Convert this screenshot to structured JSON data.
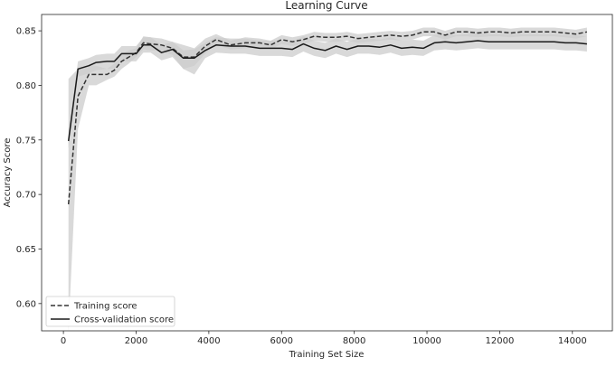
{
  "chart_data": {
    "type": "line",
    "title": "Learning Curve",
    "xlabel": "Training Set Size",
    "ylabel": "Accuracy Score",
    "xlim": [
      -600,
      15100
    ],
    "ylim": [
      0.575,
      0.865
    ],
    "xticks": [
      0,
      2000,
      4000,
      6000,
      8000,
      10000,
      12000,
      14000
    ],
    "xtick_labels": [
      "0",
      "2000",
      "4000",
      "6000",
      "8000",
      "10000",
      "12000",
      "14000"
    ],
    "yticks": [
      0.6,
      0.65,
      0.7,
      0.75,
      0.8,
      0.85
    ],
    "ytick_labels": [
      "0.60",
      "0.65",
      "0.70",
      "0.75",
      "0.80",
      "0.85"
    ],
    "grid": false,
    "legend_position": "bottom-left",
    "x": [
      140,
      400,
      700,
      900,
      1200,
      1400,
      1600,
      1800,
      2000,
      2200,
      2400,
      2700,
      3000,
      3300,
      3600,
      3900,
      4200,
      4600,
      5000,
      5400,
      5700,
      6000,
      6300,
      6600,
      6900,
      7200,
      7500,
      7800,
      8100,
      8400,
      8700,
      9000,
      9300,
      9600,
      9900,
      10200,
      10500,
      10800,
      11100,
      11400,
      11700,
      12000,
      12300,
      12600,
      12900,
      13200,
      13500,
      13800,
      14100,
      14400
    ],
    "series": [
      {
        "name": "Training score",
        "style": "dashed",
        "color": "#333333",
        "values": [
          0.691,
          0.79,
          0.81,
          0.81,
          0.81,
          0.814,
          0.822,
          0.826,
          0.83,
          0.839,
          0.838,
          0.837,
          0.834,
          0.826,
          0.826,
          0.836,
          0.842,
          0.837,
          0.839,
          0.839,
          0.837,
          0.842,
          0.84,
          0.842,
          0.845,
          0.844,
          0.844,
          0.845,
          0.843,
          0.844,
          0.845,
          0.846,
          0.845,
          0.846,
          0.849,
          0.849,
          0.846,
          0.849,
          0.849,
          0.848,
          0.849,
          0.849,
          0.848,
          0.849,
          0.849,
          0.849,
          0.849,
          0.848,
          0.847,
          0.849
        ],
        "band_lower": [
          0.575,
          0.76,
          0.8,
          0.8,
          0.805,
          0.808,
          0.815,
          0.82,
          0.826,
          0.833,
          0.832,
          0.831,
          0.828,
          0.815,
          0.818,
          0.829,
          0.837,
          0.833,
          0.834,
          0.835,
          0.833,
          0.838,
          0.836,
          0.838,
          0.841,
          0.84,
          0.84,
          0.841,
          0.839,
          0.84,
          0.841,
          0.842,
          0.841,
          0.842,
          0.845,
          0.845,
          0.842,
          0.845,
          0.845,
          0.844,
          0.845,
          0.845,
          0.844,
          0.845,
          0.845,
          0.845,
          0.845,
          0.844,
          0.843,
          0.845
        ],
        "band_upper": [
          0.806,
          0.815,
          0.818,
          0.818,
          0.815,
          0.82,
          0.829,
          0.832,
          0.834,
          0.845,
          0.844,
          0.843,
          0.84,
          0.837,
          0.834,
          0.843,
          0.847,
          0.841,
          0.844,
          0.843,
          0.841,
          0.846,
          0.844,
          0.846,
          0.849,
          0.848,
          0.848,
          0.849,
          0.847,
          0.848,
          0.849,
          0.85,
          0.849,
          0.85,
          0.853,
          0.853,
          0.85,
          0.853,
          0.853,
          0.852,
          0.853,
          0.853,
          0.852,
          0.853,
          0.853,
          0.853,
          0.853,
          0.852,
          0.851,
          0.853
        ]
      },
      {
        "name": "Cross-validation score",
        "style": "solid",
        "color": "#1a1a1a",
        "values": [
          0.749,
          0.815,
          0.818,
          0.821,
          0.822,
          0.822,
          0.829,
          0.829,
          0.829,
          0.837,
          0.837,
          0.83,
          0.833,
          0.825,
          0.825,
          0.832,
          0.837,
          0.836,
          0.836,
          0.834,
          0.834,
          0.834,
          0.833,
          0.838,
          0.834,
          0.832,
          0.836,
          0.833,
          0.836,
          0.836,
          0.835,
          0.837,
          0.834,
          0.835,
          0.834,
          0.839,
          0.84,
          0.839,
          0.84,
          0.841,
          0.84,
          0.84,
          0.84,
          0.84,
          0.84,
          0.84,
          0.84,
          0.839,
          0.839,
          0.838
        ],
        "band_lower": [
          0.742,
          0.808,
          0.811,
          0.814,
          0.815,
          0.815,
          0.822,
          0.822,
          0.822,
          0.83,
          0.83,
          0.823,
          0.826,
          0.815,
          0.81,
          0.825,
          0.83,
          0.829,
          0.829,
          0.827,
          0.827,
          0.827,
          0.826,
          0.831,
          0.827,
          0.825,
          0.829,
          0.826,
          0.829,
          0.829,
          0.828,
          0.83,
          0.827,
          0.828,
          0.827,
          0.832,
          0.833,
          0.832,
          0.833,
          0.834,
          0.833,
          0.833,
          0.833,
          0.833,
          0.833,
          0.833,
          0.833,
          0.832,
          0.832,
          0.831
        ],
        "band_upper": [
          0.756,
          0.822,
          0.825,
          0.828,
          0.829,
          0.829,
          0.836,
          0.836,
          0.836,
          0.844,
          0.844,
          0.837,
          0.84,
          0.832,
          0.833,
          0.839,
          0.844,
          0.843,
          0.843,
          0.841,
          0.841,
          0.841,
          0.84,
          0.845,
          0.841,
          0.839,
          0.843,
          0.84,
          0.843,
          0.843,
          0.842,
          0.844,
          0.841,
          0.842,
          0.841,
          0.846,
          0.847,
          0.846,
          0.847,
          0.848,
          0.847,
          0.847,
          0.847,
          0.847,
          0.847,
          0.847,
          0.847,
          0.846,
          0.846,
          0.845
        ]
      }
    ],
    "band_color": "#cccccc"
  }
}
